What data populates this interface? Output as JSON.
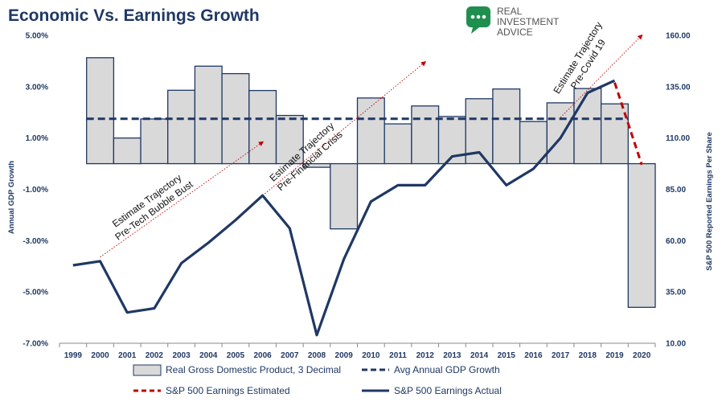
{
  "title": "Economic Vs. Earnings Growth",
  "logo": {
    "line1": "REAL",
    "line2": "INVESTMENT",
    "line3": "ADVICE",
    "icon": "chat-bubble-icon",
    "color": "#1e8f4e"
  },
  "chart_data": {
    "type": "bar",
    "categories": [
      "1999",
      "2000",
      "2001",
      "2002",
      "2003",
      "2004",
      "2005",
      "2006",
      "2007",
      "2008",
      "2009",
      "2010",
      "2011",
      "2012",
      "2013",
      "2014",
      "2015",
      "2016",
      "2017",
      "2018",
      "2019",
      "2020"
    ],
    "left_axis": {
      "label": "Annual GDP Growth",
      "ticks": [
        "5.00%",
        "3.00%",
        "1.00%",
        "-1.00%",
        "-3.00%",
        "-5.00%",
        "-7.00%"
      ],
      "range": [
        -7,
        5
      ]
    },
    "right_axis": {
      "label": "S&P 500 Reported Earnings Per Share",
      "ticks": [
        "160.00",
        "135.00",
        "110.00",
        "85.00",
        "60.00",
        "35.00",
        "10.00"
      ],
      "range": [
        10,
        160
      ]
    },
    "series": [
      {
        "name": "Real Gross Domestic Product, 3 Decimal",
        "kind": "bar",
        "axis": "left",
        "color": "#d9d9d9",
        "stroke": "#1f3864",
        "values": [
          null,
          4.13,
          1.0,
          1.74,
          2.86,
          3.8,
          3.51,
          2.85,
          1.88,
          -0.14,
          -2.54,
          2.56,
          1.55,
          2.25,
          1.84,
          2.53,
          2.91,
          1.64,
          2.37,
          2.93,
          2.33,
          -5.6
        ]
      },
      {
        "name": "Avg Annual GDP Growth",
        "kind": "hline",
        "axis": "left",
        "color": "#1f3864",
        "value": 1.75
      },
      {
        "name": "S&P 500 Earnings Estimated",
        "kind": "line",
        "axis": "right",
        "color": "#c00000",
        "points": [
          [
            "2019",
            137
          ],
          [
            "2020",
            97
          ]
        ]
      },
      {
        "name": "S&P 500 Earnings Actual",
        "kind": "line",
        "axis": "right",
        "color": "#1f3864",
        "values": [
          48,
          50,
          25,
          27,
          49,
          59,
          70,
          82,
          66,
          14,
          51,
          79,
          87,
          87,
          101,
          103,
          87,
          95,
          110,
          132,
          138,
          null
        ]
      }
    ],
    "trend_lines": [
      {
        "from": [
          "2000",
          52
        ],
        "to": [
          "2006",
          108
        ],
        "axis": "right"
      },
      {
        "from": [
          "2006",
          82
        ],
        "to": [
          "2012",
          147
        ],
        "axis": "right"
      },
      {
        "from": [
          "2017",
          120
        ],
        "to": [
          "2020",
          160
        ],
        "axis": "right"
      }
    ],
    "annotations": [
      {
        "lines": [
          "Estimate Trajectory",
          "Pre-Tech Bubble Bust"
        ]
      },
      {
        "lines": [
          "Estimate Trajectory",
          "Pre-Financial Crisis"
        ]
      },
      {
        "lines": [
          "Estimate Trajectory",
          "Pre-Covid 19"
        ]
      }
    ],
    "legend": {
      "position": "bottom",
      "items": [
        {
          "label": "Real Gross Domestic Product, 3 Decimal",
          "marker": "bar"
        },
        {
          "label": "Avg Annual GDP Growth",
          "marker": "dash"
        },
        {
          "label": "S&P 500 Earnings Estimated",
          "marker": "red-dash"
        },
        {
          "label": "S&P 500 Earnings Actual",
          "marker": "line"
        }
      ]
    },
    "grid": false
  }
}
